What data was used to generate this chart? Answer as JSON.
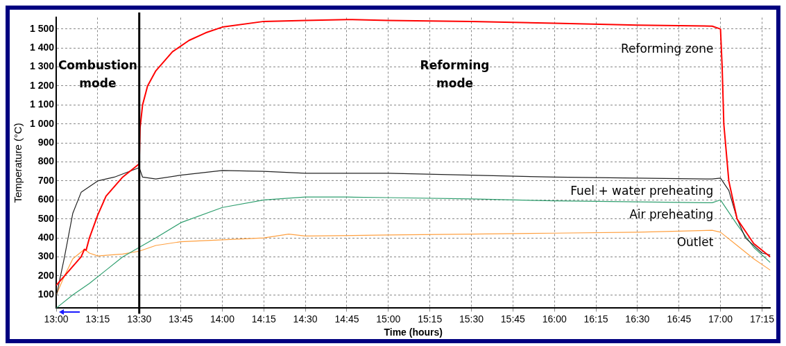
{
  "chart_data": {
    "type": "line",
    "xlabel": "Time (hours)",
    "ylabel": "Temperature (°C)",
    "xlim": [
      13,
      17.3
    ],
    "ylim": [
      30,
      1560
    ],
    "xticks": [
      {
        "value": 13,
        "label": "13:00"
      },
      {
        "value": 13.25,
        "label": "13:15"
      },
      {
        "value": 13.5,
        "label": "13:30"
      },
      {
        "value": 13.75,
        "label": "13:45"
      },
      {
        "value": 14,
        "label": "14:00"
      },
      {
        "value": 14.25,
        "label": "14:15"
      },
      {
        "value": 14.5,
        "label": "14:30"
      },
      {
        "value": 14.75,
        "label": "14:45"
      },
      {
        "value": 15,
        "label": "15:00"
      },
      {
        "value": 15.25,
        "label": "15:15"
      },
      {
        "value": 15.5,
        "label": "15:30"
      },
      {
        "value": 15.75,
        "label": "15:45"
      },
      {
        "value": 16,
        "label": "16:00"
      },
      {
        "value": 16.25,
        "label": "16:15"
      },
      {
        "value": 16.5,
        "label": "16:30"
      },
      {
        "value": 16.75,
        "label": "16:45"
      },
      {
        "value": 17,
        "label": "17:00"
      },
      {
        "value": 17.25,
        "label": "17:15"
      }
    ],
    "yticks": [
      100,
      200,
      300,
      400,
      500,
      600,
      700,
      800,
      900,
      {
        "value": 1000,
        "label": "1 000"
      },
      {
        "value": 1100,
        "label": "1 100"
      },
      {
        "value": 1200,
        "label": "1 200"
      },
      {
        "value": 1300,
        "label": "1 300"
      },
      {
        "value": 1400,
        "label": "1 400"
      },
      {
        "value": 1500,
        "label": "1 500"
      }
    ],
    "grid": true,
    "legend": false,
    "marker": "none",
    "line_style": "solid",
    "ref_lines": [
      {
        "axis": "x",
        "value": 13.5,
        "color": "#000000"
      }
    ],
    "annotations": [
      "Combustion\nmode",
      "Reforming\nmode"
    ],
    "series": [
      {
        "name": "Reforming zone",
        "color": "#ff0000",
        "x": [
          13,
          13.05,
          13.1,
          13.15,
          13.17,
          13.18,
          13.2,
          13.25,
          13.3,
          13.4,
          13.5,
          13.505,
          13.52,
          13.55,
          13.6,
          13.7,
          13.8,
          13.9,
          14,
          14.25,
          14.5,
          14.75,
          15,
          15.5,
          16,
          16.5,
          16.95,
          17,
          17.01,
          17.02,
          17.05,
          17.1,
          17.2,
          17.3
        ],
        "values": [
          150,
          200,
          250,
          300,
          340,
          335,
          400,
          520,
          620,
          720,
          790,
          980,
          1100,
          1200,
          1280,
          1380,
          1440,
          1480,
          1510,
          1540,
          1545,
          1550,
          1545,
          1540,
          1530,
          1520,
          1515,
          1500,
          1300,
          1000,
          700,
          500,
          370,
          300
        ]
      },
      {
        "name": "Fuel + water preheating",
        "color": "#222222",
        "x": [
          13,
          13.05,
          13.1,
          13.15,
          13.25,
          13.35,
          13.5,
          13.52,
          13.6,
          13.75,
          14,
          14.25,
          14.5,
          15,
          15.5,
          16,
          16.5,
          16.95,
          17,
          17.05,
          17.1,
          17.15,
          17.25,
          17.3
        ],
        "values": [
          90,
          300,
          530,
          640,
          700,
          720,
          770,
          720,
          710,
          730,
          755,
          750,
          740,
          740,
          730,
          720,
          715,
          710,
          715,
          650,
          500,
          400,
          320,
          310
        ]
      },
      {
        "name": "Air preheating",
        "color": "#2e9e6e",
        "x": [
          13,
          13.1,
          13.2,
          13.3,
          13.4,
          13.5,
          13.6,
          13.75,
          14,
          14.25,
          14.5,
          14.75,
          15,
          15.5,
          16,
          16.5,
          16.95,
          17,
          17.1,
          17.2,
          17.3
        ],
        "values": [
          30,
          100,
          160,
          230,
          300,
          350,
          400,
          480,
          560,
          600,
          615,
          615,
          612,
          605,
          595,
          590,
          585,
          600,
          470,
          350,
          270
        ]
      },
      {
        "name": "Outlet",
        "color": "#ffa040",
        "x": [
          13,
          13.05,
          13.1,
          13.17,
          13.2,
          13.25,
          13.4,
          13.5,
          13.6,
          13.75,
          14,
          14.25,
          14.4,
          14.5,
          15,
          15.5,
          16,
          16.5,
          16.95,
          17,
          17.1,
          17.2,
          17.3
        ],
        "values": [
          100,
          200,
          290,
          340,
          320,
          305,
          315,
          330,
          360,
          380,
          390,
          400,
          420,
          410,
          415,
          420,
          425,
          430,
          440,
          430,
          360,
          290,
          230
        ]
      }
    ]
  }
}
